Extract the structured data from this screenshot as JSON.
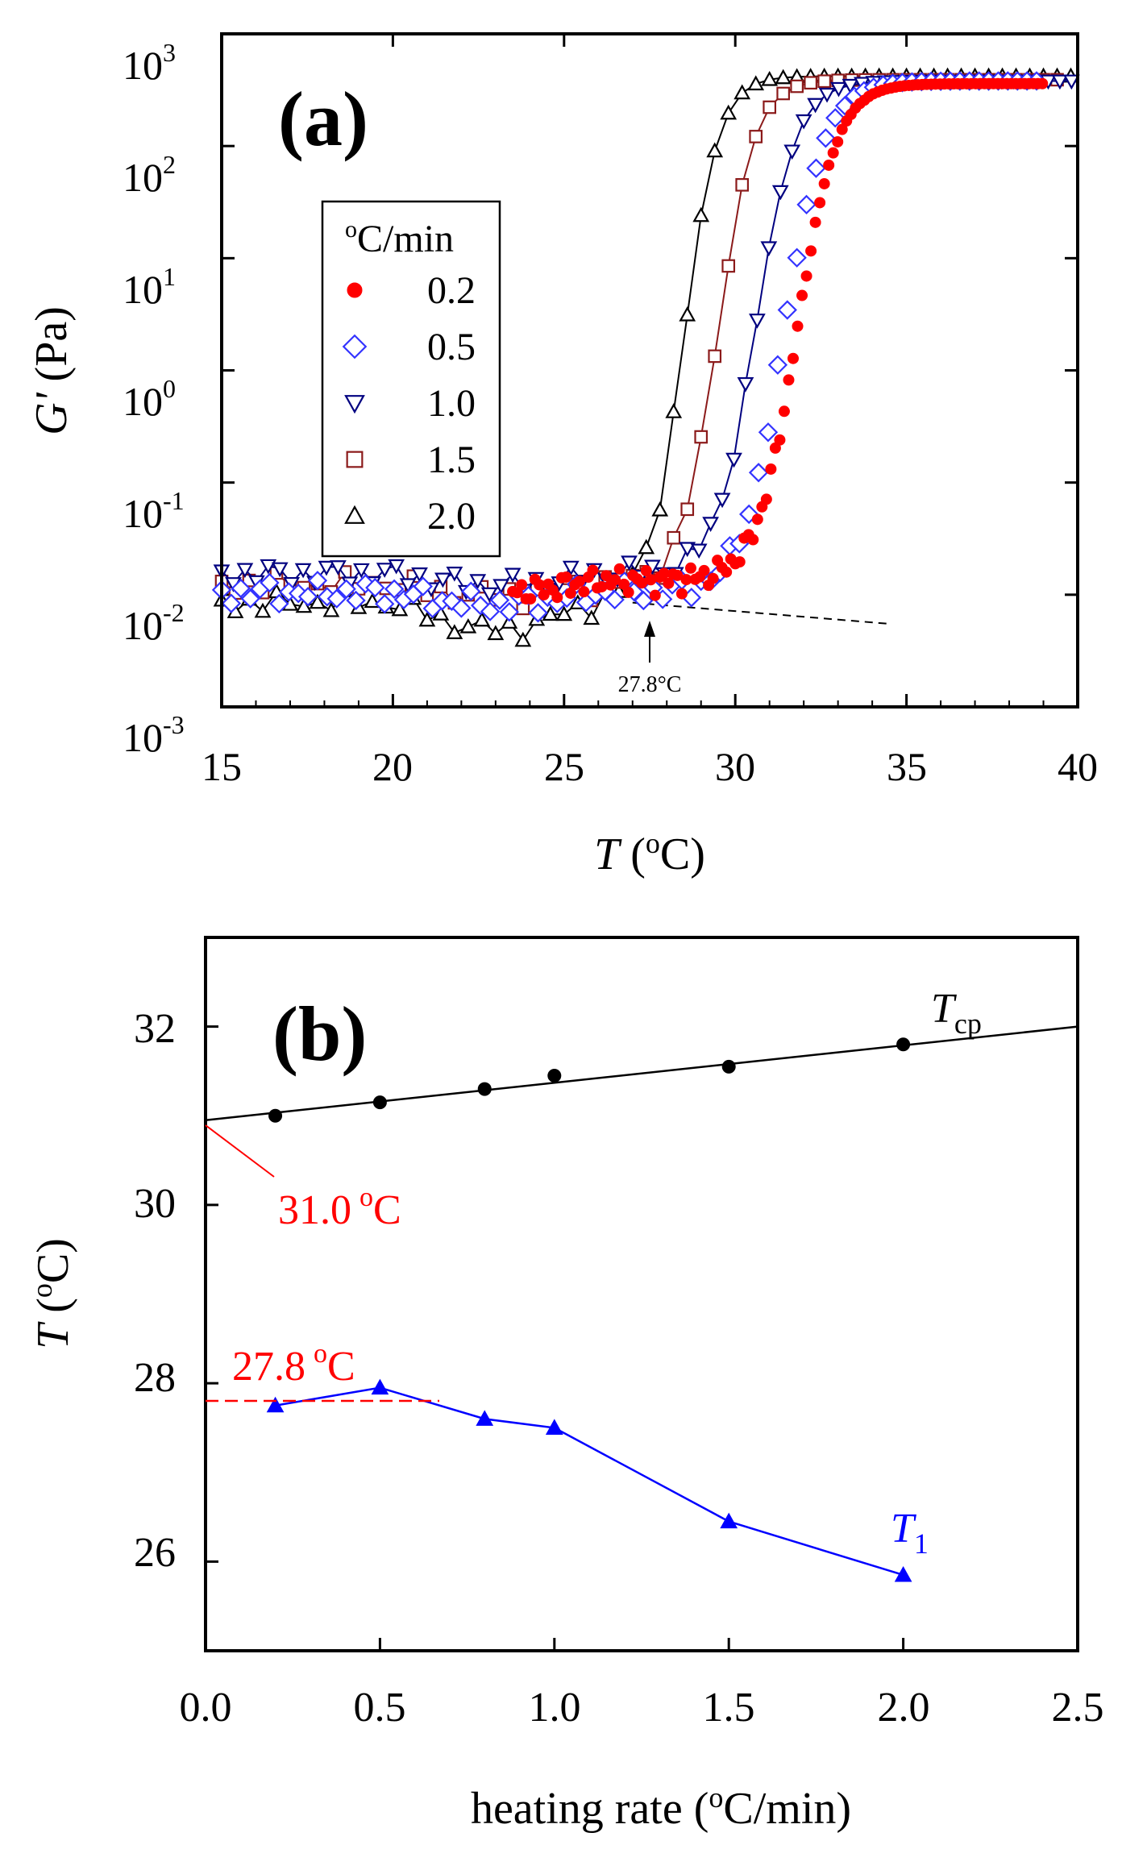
{
  "chart_data": [
    {
      "panel": "(a)",
      "type": "scatter",
      "yscale": "log",
      "xlim": [
        15,
        40
      ],
      "ylim": [
        0.001,
        1000
      ],
      "xticks": [
        "15",
        "20",
        "25",
        "30",
        "35",
        "40"
      ],
      "yticks": [
        {
          "base": "10",
          "exp": "3"
        },
        {
          "base": "10",
          "exp": "2"
        },
        {
          "base": "10",
          "exp": "1"
        },
        {
          "base": "10",
          "exp": "0"
        },
        {
          "base": "10",
          "exp": "-1"
        },
        {
          "base": "10",
          "exp": "-2"
        },
        {
          "base": "10",
          "exp": "-3"
        }
      ],
      "xlabel": {
        "var": "T",
        "open": " (",
        "deg": "o",
        "unit": "C)"
      },
      "ylabel": {
        "var": "G'",
        "unit": " (Pa)"
      },
      "legend": {
        "title_deg": "o",
        "title_unit": "C/min",
        "placement": "left",
        "entries": [
          "0.2",
          "0.5",
          "1.0",
          "1.5",
          "2.0"
        ]
      },
      "annotation": "27.8°C",
      "series": [
        {
          "name": "0.2",
          "marker": "filled-circle",
          "color": "#ff0000",
          "line": false,
          "baseline": 0.0135,
          "Tm": 31.8,
          "s": 0.58,
          "gmax": 360,
          "start": 23.5,
          "step": 0.13,
          "end": 39
        },
        {
          "name": "0.5",
          "marker": "open-diamond",
          "color": "#3333ff",
          "line": false,
          "baseline": 0.0105,
          "Tm": 31.4,
          "s": 0.6,
          "gmax": 380,
          "start": 15,
          "step": 0.28,
          "end": 39
        },
        {
          "name": "1.0",
          "marker": "open-triangle-down",
          "color": "#000080",
          "line": true,
          "baseline": 0.0155,
          "Tm": 30.6,
          "s": 0.58,
          "gmax": 380,
          "start": 15,
          "step": 0.34,
          "end": 40
        },
        {
          "name": "1.5",
          "marker": "open-square",
          "color": "#8b1a1a",
          "line": true,
          "baseline": 0.0125,
          "Tm": 29.5,
          "s": 0.53,
          "gmax": 390,
          "start": 15,
          "step": 0.4,
          "end": 39.5
        },
        {
          "name": "2.0",
          "marker": "open-triangle-up",
          "color": "#000000",
          "line": true,
          "baseline": 0.0085,
          "Tm": 28.5,
          "s": 0.5,
          "gmax": 420,
          "start": 15,
          "step": 0.4,
          "end": 40
        }
      ],
      "baseline_extrapolation": [
        [
          27.0,
          0.0085
        ],
        [
          34.5,
          0.0055
        ]
      ]
    },
    {
      "panel": "(b)",
      "type": "line",
      "xlim": [
        0,
        2.5
      ],
      "ylim": [
        25,
        33
      ],
      "xticks": [
        "0.0",
        "0.5",
        "1.0",
        "1.5",
        "2.0",
        "2.5"
      ],
      "yticks": [
        "26",
        "28",
        "30",
        "32"
      ],
      "xlabel": {
        "text": "heating rate (",
        "deg": "o",
        "unit": "C/min)"
      },
      "ylabel": {
        "var": "T",
        "open": " (",
        "deg": "o",
        "unit": "C)"
      },
      "series": [
        {
          "name": "Tcp",
          "label_main": "T",
          "label_sub": "cp",
          "color": "#000000",
          "marker": "filled-circle",
          "x": [
            0.2,
            0.5,
            0.8,
            1.0,
            1.5,
            2.0
          ],
          "y": [
            31.0,
            31.15,
            31.3,
            31.45,
            31.55,
            31.8
          ],
          "fit": [
            [
              0,
              30.95
            ],
            [
              2.5,
              32.0
            ]
          ]
        },
        {
          "name": "T1",
          "label_main": "T",
          "label_sub": "1",
          "color": "#0000ff",
          "marker": "filled-triangle",
          "x": [
            0.2,
            0.5,
            0.8,
            1.0,
            1.5,
            2.0
          ],
          "y": [
            27.75,
            27.95,
            27.6,
            27.5,
            26.45,
            25.85
          ]
        }
      ],
      "annotations": [
        {
          "text": "31.0",
          "deg": "o",
          "unit": "C",
          "color": "#ff0000",
          "y_value": 31.0
        },
        {
          "text": "27.8",
          "deg": "o",
          "unit": "C",
          "color": "#ff0000",
          "y_value": 27.8
        }
      ]
    }
  ],
  "colors": {
    "highlight": "#ff0000",
    "axis": "#000000"
  }
}
